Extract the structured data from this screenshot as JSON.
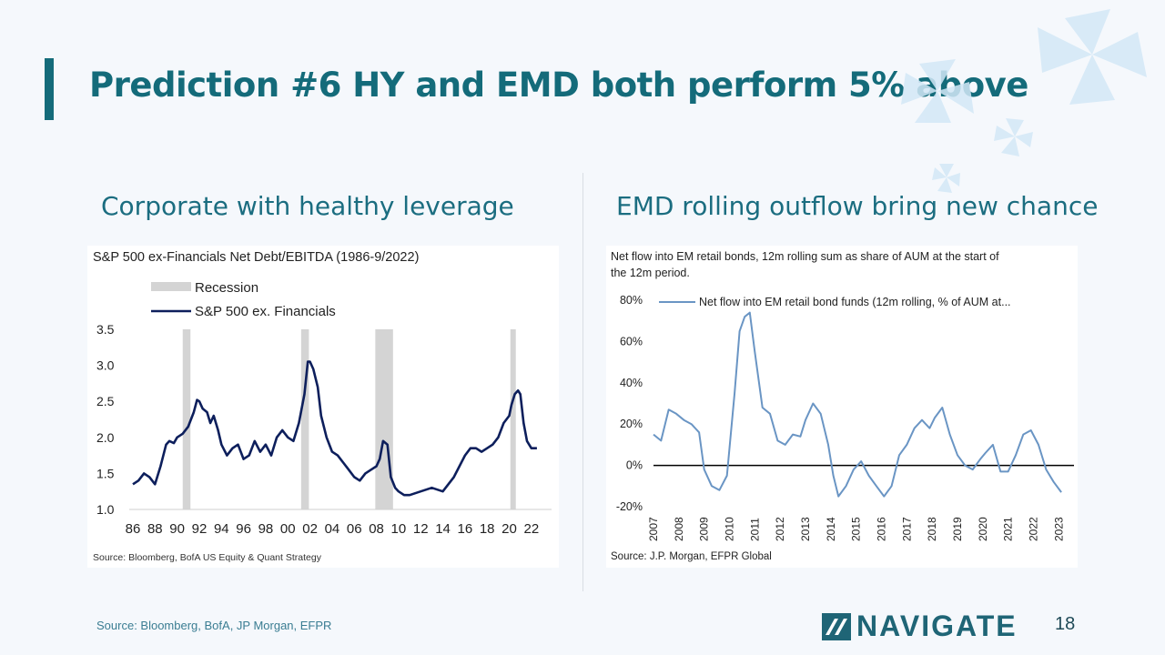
{
  "slide": {
    "title": "Prediction #6 HY and EMD both perform 5% above",
    "left_subtitle": "Corporate with healthy leverage",
    "right_subtitle": "EMD rolling outflow bring new chance",
    "footer_source": "Source: Bloomberg, BofA, JP Morgan, EFPR",
    "logo_text": "NAVIGATE",
    "page_number": "18",
    "accent_color": "#146b7a"
  },
  "chart_data": [
    {
      "type": "line",
      "title": "S&P 500 ex-Financials Net Debt/EBITDA (1986-9/2022)",
      "source": "Source: Bloomberg, BofA US Equity & Quant Strategy",
      "legend": [
        "Recession",
        "S&P 500 ex. Financials"
      ],
      "legend_placement": "top-left",
      "xlim": [
        1986,
        2023
      ],
      "ylim": [
        1.0,
        3.5
      ],
      "x_ticks": [
        "86",
        "88",
        "90",
        "92",
        "94",
        "96",
        "98",
        "00",
        "02",
        "04",
        "06",
        "08",
        "10",
        "12",
        "14",
        "16",
        "18",
        "20",
        "22"
      ],
      "y_ticks": [
        "1.0",
        "1.5",
        "2.0",
        "2.5",
        "3.0",
        "3.5"
      ],
      "recessions": [
        [
          1990.5,
          1991.2
        ],
        [
          2001.2,
          2001.9
        ],
        [
          2007.9,
          2009.5
        ],
        [
          2020.1,
          2020.5
        ]
      ],
      "series": [
        {
          "name": "S&P 500 ex. Financials",
          "color": "#0d1f5c",
          "x": [
            1986,
            1986.5,
            1987,
            1987.5,
            1988,
            1988.5,
            1989,
            1989.3,
            1989.7,
            1990,
            1990.5,
            1991,
            1991.5,
            1991.8,
            1992,
            1992.3,
            1992.7,
            1993,
            1993.3,
            1993.7,
            1994,
            1994.5,
            1995,
            1995.5,
            1996,
            1996.5,
            1997,
            1997.5,
            1998,
            1998.5,
            1999,
            1999.5,
            2000,
            2000.5,
            2001,
            2001.5,
            2001.8,
            2002,
            2002.3,
            2002.7,
            2003,
            2003.5,
            2004,
            2004.5,
            2005,
            2005.5,
            2006,
            2006.5,
            2007,
            2007.5,
            2008,
            2008.3,
            2008.6,
            2009,
            2009.3,
            2009.7,
            2010,
            2010.5,
            2011,
            2012,
            2013,
            2014,
            2015,
            2015.5,
            2016,
            2016.5,
            2017,
            2017.5,
            2018,
            2018.5,
            2019,
            2019.5,
            2020,
            2020.2,
            2020.5,
            2020.8,
            2021,
            2021.3,
            2021.6,
            2022,
            2022.5
          ],
          "y": [
            1.35,
            1.4,
            1.5,
            1.45,
            1.35,
            1.6,
            1.9,
            1.95,
            1.92,
            2.0,
            2.05,
            2.15,
            2.35,
            2.52,
            2.5,
            2.4,
            2.35,
            2.2,
            2.3,
            2.1,
            1.9,
            1.75,
            1.85,
            1.9,
            1.7,
            1.75,
            1.95,
            1.8,
            1.9,
            1.75,
            2.0,
            2.1,
            2.0,
            1.95,
            2.2,
            2.6,
            3.05,
            3.05,
            2.95,
            2.7,
            2.3,
            2.0,
            1.8,
            1.75,
            1.65,
            1.55,
            1.45,
            1.4,
            1.5,
            1.55,
            1.6,
            1.7,
            1.95,
            1.9,
            1.45,
            1.3,
            1.25,
            1.2,
            1.2,
            1.25,
            1.3,
            1.25,
            1.45,
            1.6,
            1.75,
            1.85,
            1.85,
            1.8,
            1.85,
            1.9,
            2.0,
            2.2,
            2.3,
            2.45,
            2.6,
            2.65,
            2.6,
            2.2,
            1.95,
            1.85,
            1.85
          ]
        }
      ]
    },
    {
      "type": "line",
      "title": "Net flow into EM retail bonds, 12m rolling sum as share of AUM at the start of the 12m period.",
      "source": "Source: J.P. Morgan, EFPR Global",
      "legend": [
        "Net flow into EM retail bond funds (12m rolling, % of AUM at..."
      ],
      "legend_placement": "top",
      "xlim": [
        2007,
        2023.6
      ],
      "ylim": [
        -20,
        80
      ],
      "x_ticks": [
        "2007",
        "2008",
        "2009",
        "2010",
        "2011",
        "2012",
        "2013",
        "2014",
        "2015",
        "2016",
        "2017",
        "2018",
        "2019",
        "2020",
        "2021",
        "2022",
        "2023"
      ],
      "y_ticks": [
        "80%",
        "60%",
        "40%",
        "20%",
        "0%",
        "-20%"
      ],
      "series": [
        {
          "name": "Net flow into EM retail bond funds (12m rolling, % of AUM at...",
          "color": "#6a95c4",
          "x": [
            2007,
            2007.3,
            2007.6,
            2007.9,
            2008.2,
            2008.5,
            2008.8,
            2009.0,
            2009.3,
            2009.6,
            2009.9,
            2010.2,
            2010.4,
            2010.6,
            2010.8,
            2011.0,
            2011.3,
            2011.6,
            2011.9,
            2012.2,
            2012.5,
            2012.8,
            2013.0,
            2013.3,
            2013.6,
            2013.9,
            2014.1,
            2014.3,
            2014.6,
            2014.9,
            2015.2,
            2015.5,
            2015.8,
            2016.1,
            2016.4,
            2016.7,
            2017.0,
            2017.3,
            2017.6,
            2017.9,
            2018.1,
            2018.4,
            2018.7,
            2019.0,
            2019.3,
            2019.6,
            2019.9,
            2020.1,
            2020.4,
            2020.7,
            2021.0,
            2021.3,
            2021.6,
            2021.9,
            2022.2,
            2022.5,
            2022.8,
            2023.1
          ],
          "y": [
            15,
            12,
            27,
            25,
            22,
            20,
            16,
            -2,
            -10,
            -12,
            -5,
            35,
            65,
            72,
            74,
            55,
            28,
            25,
            12,
            10,
            15,
            14,
            22,
            30,
            25,
            10,
            -5,
            -15,
            -10,
            -2,
            2,
            -5,
            -10,
            -15,
            -10,
            5,
            10,
            18,
            22,
            18,
            23,
            28,
            15,
            5,
            0,
            -2,
            3,
            6,
            10,
            -3,
            -3,
            5,
            15,
            17,
            10,
            -2,
            -8,
            -13
          ]
        }
      ]
    }
  ]
}
